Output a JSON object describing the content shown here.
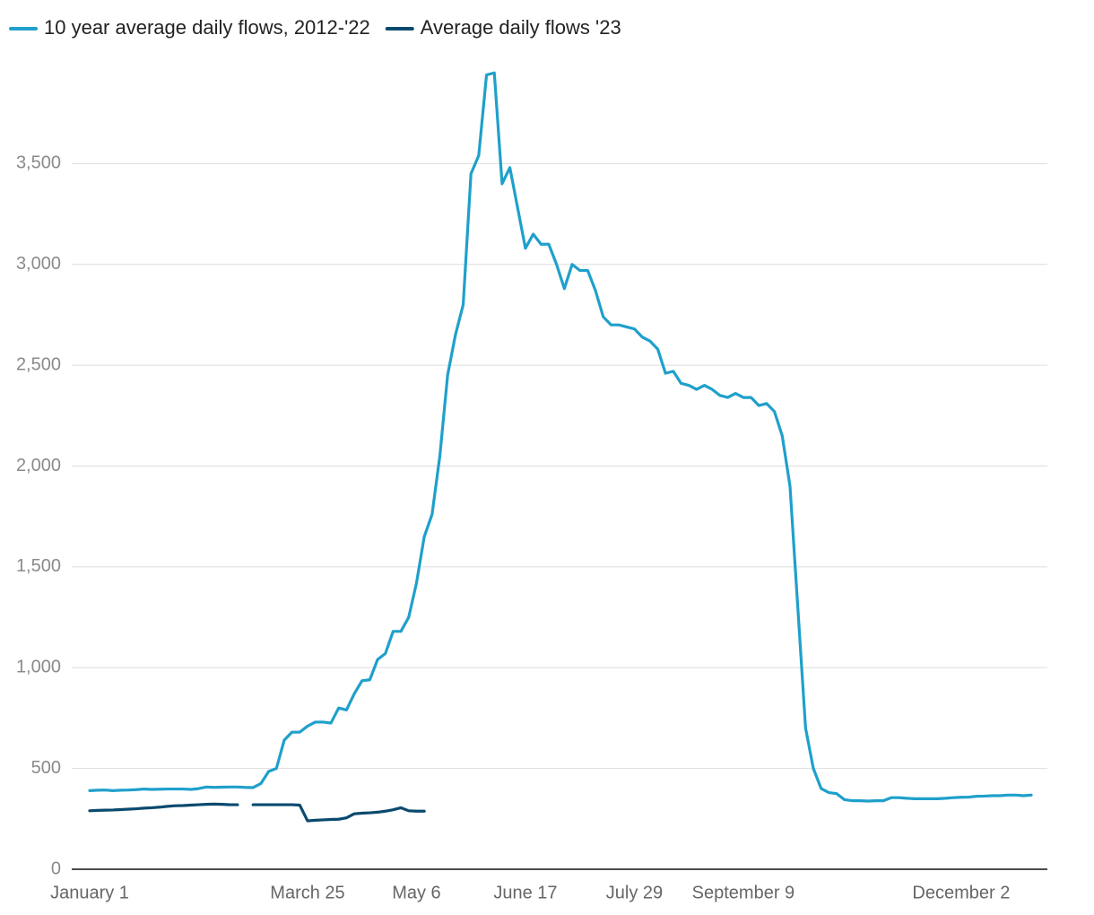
{
  "chart_data": {
    "type": "line",
    "categories": [
      "January 1",
      null,
      null,
      null,
      null,
      null,
      null,
      null,
      null,
      null,
      null,
      null,
      null,
      null,
      null,
      null,
      null,
      null,
      null,
      null,
      null,
      null,
      null,
      null,
      null,
      null,
      null,
      null,
      "March 25",
      null,
      null,
      null,
      null,
      null,
      null,
      null,
      null,
      null,
      null,
      null,
      null,
      null,
      "May 6",
      null,
      null,
      null,
      null,
      null,
      null,
      null,
      null,
      null,
      null,
      null,
      null,
      null,
      "June 17",
      null,
      null,
      null,
      null,
      null,
      null,
      null,
      null,
      null,
      null,
      null,
      null,
      null,
      "July 29",
      null,
      null,
      null,
      null,
      null,
      null,
      null,
      null,
      null,
      null,
      null,
      null,
      null,
      "September 9",
      null,
      null,
      null,
      null,
      null,
      null,
      null,
      null,
      null,
      null,
      null,
      null,
      null,
      null,
      null,
      null,
      null,
      null,
      null,
      null,
      null,
      null,
      null,
      null,
      null,
      null,
      null,
      "December 2",
      null,
      null,
      null,
      null,
      null,
      null,
      null,
      null,
      null
    ],
    "series": [
      {
        "name": "10 year average daily flows, 2012-'22",
        "color": "#1fa0cb",
        "values": [
          390,
          392,
          393,
          390,
          392,
          393,
          395,
          398,
          396,
          397,
          398,
          398,
          398,
          396,
          400,
          408,
          406,
          407,
          408,
          408,
          406,
          405,
          425,
          485,
          500,
          640,
          680,
          680,
          710,
          730,
          730,
          725,
          800,
          790,
          870,
          935,
          940,
          1040,
          1070,
          1180,
          1180,
          1250,
          1420,
          1650,
          1760,
          2050,
          2450,
          2650,
          2800,
          3450,
          3540,
          3940,
          3950,
          3400,
          3480,
          3280,
          3080,
          3150,
          3100,
          3100,
          3000,
          2880,
          3000,
          2970,
          2970,
          2870,
          2740,
          2700,
          2700,
          2690,
          2680,
          2640,
          2620,
          2580,
          2460,
          2470,
          2410,
          2400,
          2380,
          2400,
          2380,
          2350,
          2340,
          2360,
          2340,
          2340,
          2300,
          2310,
          2270,
          2150,
          1900,
          1300,
          700,
          500,
          400,
          380,
          375,
          345,
          340,
          340,
          338,
          340,
          340,
          355,
          355,
          352,
          350,
          350,
          350,
          350,
          352,
          355,
          357,
          358,
          362,
          363,
          365,
          365,
          368,
          368,
          365,
          368
        ]
      },
      {
        "name": "Average daily flows '23",
        "color": "#0a4a6e",
        "values": [
          290,
          292,
          293,
          294,
          296,
          298,
          300,
          303,
          305,
          308,
          312,
          315,
          316,
          318,
          320,
          322,
          323,
          322,
          320,
          320,
          null,
          320,
          320,
          320,
          320,
          320,
          320,
          318,
          240,
          243,
          245,
          247,
          248,
          255,
          275,
          278,
          280,
          283,
          288,
          295,
          305,
          290,
          288,
          288,
          null,
          null,
          null,
          null,
          null,
          null,
          null,
          null,
          null,
          null,
          null,
          null,
          null,
          null,
          null,
          null,
          null,
          null,
          null,
          null,
          null,
          null,
          null,
          null,
          null,
          null,
          null,
          null,
          null,
          null,
          null,
          null,
          null,
          null,
          null,
          null,
          null,
          null,
          null,
          null,
          null,
          null,
          null,
          null,
          null,
          null,
          null,
          null,
          null,
          null,
          null,
          null,
          null,
          null,
          null,
          null,
          null,
          null,
          null,
          null,
          null,
          null,
          null,
          null,
          null,
          null,
          null,
          null,
          null,
          null,
          null,
          null,
          null,
          null,
          null,
          null,
          null,
          null
        ]
      }
    ],
    "ylim": [
      0,
      4000
    ],
    "yticks": [
      0,
      500,
      {
        "value": 1000,
        "label": "1,000"
      },
      {
        "value": 1500,
        "label": "1,500"
      },
      {
        "value": 2000,
        "label": "2,000"
      },
      {
        "value": 2500,
        "label": "2,500"
      },
      {
        "value": 3000,
        "label": "3,000"
      },
      {
        "value": 3500,
        "label": "3,500"
      }
    ],
    "grid": true,
    "legend": "top-left"
  }
}
